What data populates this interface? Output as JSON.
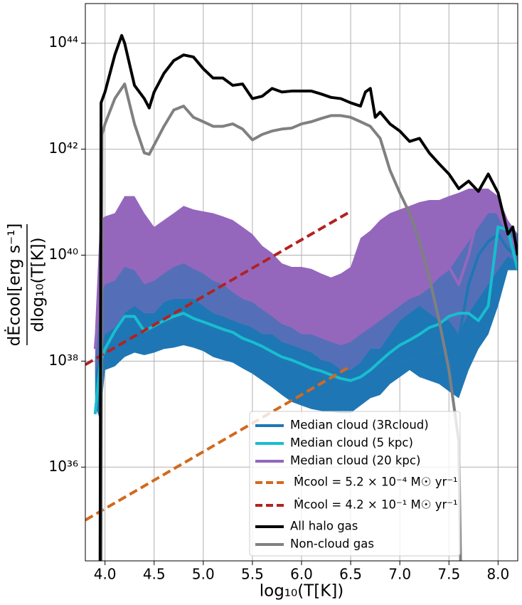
{
  "chart_data": {
    "type": "line",
    "xlabel": "log₁₀(T[K])",
    "ylabel": {
      "numerator": "dĖcool[erg s⁻¹]",
      "denominator": "dlog₁₀(T[K])"
    },
    "xlim": [
      3.8,
      8.2
    ],
    "ylim": [
      1.7e+34,
      5.6e+44
    ],
    "yscale": "log",
    "grid": true,
    "xticks": [
      {
        "value": 4,
        "label": "4.0"
      },
      4.5,
      {
        "value": 5,
        "label": "5.0"
      },
      5.5,
      {
        "value": 6,
        "label": "6.0"
      },
      6.5,
      {
        "value": 7,
        "label": "7.0"
      },
      7.5,
      {
        "value": 8,
        "label": "8.0"
      }
    ],
    "yticks": [
      {
        "value": 1e+36,
        "label": "10³⁶"
      },
      {
        "value": 1e+38,
        "label": "10³⁸"
      },
      {
        "value": 1e+40,
        "label": "10⁴⁰"
      },
      {
        "value": 1e+42,
        "label": "10⁴²"
      },
      {
        "value": 1e+44,
        "label": "10⁴⁴"
      }
    ],
    "x": [
      3.9,
      3.95,
      4.0,
      4.1,
      4.2,
      4.3,
      4.4,
      4.5,
      4.6,
      4.7,
      4.8,
      4.9,
      5.0,
      5.1,
      5.2,
      5.3,
      5.4,
      5.5,
      5.6,
      5.7,
      5.8,
      5.9,
      6.0,
      6.1,
      6.2,
      6.3,
      6.4,
      6.5,
      6.6,
      6.7,
      6.8,
      6.9,
      7.0,
      7.1,
      7.2,
      7.3,
      7.4,
      7.5,
      7.6,
      7.7,
      7.8,
      7.9,
      8.0,
      8.1,
      8.2
    ],
    "series": [
      {
        "name": "Median cloud (3Rcloud)",
        "color": "#1f77b4",
        "values": [
          1e+37,
          8e+37,
          1.5e+38,
          3.3e+38,
          6e+38,
          6e+38,
          3.3e+38,
          4e+38,
          5e+38,
          6e+38,
          7e+38,
          5.5e+38,
          4.7e+38,
          4e+38,
          3.5e+38,
          3e+38,
          2.4e+38,
          2e+38,
          1.6e+38,
          1.3e+38,
          1.05e+38,
          9e+37,
          7.5e+37,
          6.3e+37,
          5.5e+37,
          4.7e+37,
          4e+37,
          3.8e+37,
          6.8e+37,
          7.3e+37,
          8e+37,
          8.8e+37,
          9.4e+37,
          1.05e+38,
          1.2e+38,
          1.35e+38,
          1.45e+38,
          1.7e+38,
          2.7e+38,
          2.8e+39,
          1e+40,
          1.8e+40,
          2.5e+40,
          1.3e+40,
          1e+40
        ],
        "upper": [
          1.2e+38,
          1.5e+39,
          2.8e+39,
          3.3e+39,
          6e+39,
          5.2e+39,
          2.8e+39,
          3.3e+39,
          4.5e+39,
          6e+39,
          7e+39,
          5.5e+39,
          4.5e+39,
          3.3e+39,
          2.8e+39,
          2e+39,
          1.5e+39,
          1.3e+39,
          9.4e+38,
          7e+38,
          5e+38,
          4.3e+38,
          3.2e+38,
          3.2e+38,
          2.7e+38,
          2.3e+38,
          2e+38,
          2.3e+38,
          3.2e+38,
          4.3e+38,
          5.8e+38,
          8e+38,
          1.1e+39,
          1.5e+39,
          1.75e+39,
          2.4e+39,
          3.8e+39,
          5.2e+39,
          9.7e+39,
          1.8e+40,
          3.4e+40,
          6.2e+40,
          6.2e+40,
          3.4e+40,
          2.5e+40
        ],
        "lower": [
          1.45e+37,
          7.8e+36,
          6.8e+37,
          8e+37,
          1.2e+38,
          1.45e+38,
          1.3e+38,
          1.45e+38,
          1.7e+38,
          1.8e+38,
          2e+38,
          1.8e+38,
          1.55e+38,
          1.2e+38,
          1.05e+38,
          9.4e+37,
          7.3e+37,
          5.8e+37,
          4.3e+37,
          3.2e+37,
          2.3e+37,
          1.7e+37,
          1.45e+37,
          1.25e+37,
          1.15e+37,
          1.1e+37,
          1.05e+37,
          1.05e+37,
          1.45e+37,
          2e+37,
          2.3e+37,
          3.7e+37,
          5e+37,
          6.8e+37,
          5e+37,
          4.3e+37,
          3.7e+37,
          2.7e+37,
          2e+37,
          6.8e+37,
          1.7e+38,
          3.2e+38,
          1.1e+39,
          5.2e+39,
          5.2e+39
        ]
      },
      {
        "name": "Median cloud (5 kpc)",
        "color": "#17becf",
        "values": [
          1e+37,
          9e+37,
          1.7e+38,
          3.7e+38,
          7e+38,
          7e+38,
          3.7e+38,
          4.6e+38,
          5.8e+38,
          7e+38,
          8e+38,
          6.4e+38,
          5.5e+38,
          4.7e+38,
          4e+38,
          3.5e+38,
          2.7e+38,
          2.3e+38,
          1.9e+38,
          1.5e+38,
          1.2e+38,
          1.05e+38,
          8.8e+37,
          7.3e+37,
          6.5e+37,
          5.5e+37,
          4.7e+37,
          4.3e+37,
          5e+37,
          6.8e+37,
          1e+38,
          1.45e+38,
          2e+38,
          2.5e+38,
          3.2e+38,
          4.3e+38,
          5e+38,
          7e+38,
          8e+38,
          8e+38,
          5.8e+38,
          1.1e+39,
          3.4e+40,
          3e+40,
          5.2e+39
        ]
      },
      {
        "name": "Median cloud (20 kpc)",
        "color": "#9467bd",
        "values": [
          1.7e+38,
          2.8e+39,
          3.8e+39,
          5.2e+39,
          1.1e+40,
          1.3e+40,
          7e+39,
          5.2e+39,
          8e+39,
          1e+40,
          1.1e+40,
          1e+40,
          8e+39,
          7e+39,
          6e+39,
          5.2e+39,
          4e+39,
          3.3e+39,
          2.2e+39,
          1.9e+39,
          1.3e+39,
          1.1e+39,
          1e+39,
          8.8e+38,
          7e+38,
          5.8e+38,
          5.5e+38,
          6e+38,
          1.4e+39,
          2.2e+39,
          2.8e+39,
          4.5e+39,
          6.6e+39,
          8e+39,
          1e+40,
          5.2e+39,
          4.5e+39,
          6e+39,
          2.8e+39,
          1e+40,
          6.2e+40,
          8.3e+40,
          6.2e+40,
          2.5e+40,
          1.3e+40
        ],
        "upper": [
          4.3e+38,
          4.6e+40,
          5.4e+40,
          6.2e+40,
          1.3e+41,
          1.3e+41,
          6.2e+40,
          3.4e+40,
          4.6e+40,
          6.2e+40,
          8.5e+40,
          7.3e+40,
          6.7e+40,
          6.2e+40,
          5.4e+40,
          4.6e+40,
          3.4e+40,
          2.5e+40,
          1.5e+40,
          1.1e+40,
          7e+39,
          6e+39,
          6e+39,
          5.5e+39,
          4.5e+39,
          3.8e+39,
          4.5e+39,
          6e+39,
          2.1e+40,
          2.9e+40,
          4.6e+40,
          6.2e+40,
          7.3e+40,
          8.5e+40,
          1e+41,
          1.1e+41,
          1.1e+41,
          1.3e+41,
          1.5e+41,
          1.8e+41,
          1.8e+41,
          1.8e+41,
          1.3e+41,
          4.6e+40,
          2.5e+40
        ],
        "lower": [
          5.8e+37,
          1.2e+38,
          3.2e+38,
          4.3e+38,
          8e+38,
          1.1e+39,
          8e+38,
          8e+38,
          1.3e+39,
          1.5e+39,
          1.5e+39,
          1.5e+39,
          1.1e+39,
          8e+38,
          7e+38,
          5.8e+38,
          5e+38,
          4.3e+38,
          3.2e+38,
          3.2e+38,
          2.3e+38,
          2e+38,
          1.7e+38,
          1.45e+38,
          1.05e+38,
          9.4e+37,
          6.8e+37,
          6.8e+37,
          9.4e+37,
          1.7e+38,
          1.7e+38,
          3.2e+38,
          5.8e+38,
          8e+38,
          1.1e+39,
          8e+38,
          5.8e+38,
          5.8e+38,
          3.2e+38,
          8e+38,
          1.5e+39,
          2.8e+39,
          5.2e+39,
          9.5e+39,
          7e+39
        ]
      },
      {
        "name": "Ṁcool = 5.2 × 10⁻⁴ M☉ yr⁻¹",
        "color": "#d2691e",
        "dashed": true,
        "x": [
          3.8,
          6.5
        ],
        "values": [
          1e+35,
          8e+37
        ]
      },
      {
        "name": "Ṁcool = 4.2 × 10⁻¹ M☉ yr⁻¹",
        "color": "#b22222",
        "dashed": true,
        "x": [
          3.8,
          6.5
        ],
        "values": [
          8.6e+37,
          6.7e+40
        ]
      },
      {
        "name": "All halo gas",
        "color": "#000000",
        "x": [
          3.95,
          3.96,
          4.0,
          4.1,
          4.17,
          4.2,
          4.3,
          4.4,
          4.45,
          4.5,
          4.6,
          4.7,
          4.8,
          4.9,
          5.0,
          5.1,
          5.2,
          5.3,
          5.4,
          5.5,
          5.6,
          5.7,
          5.8,
          5.9,
          6.0,
          6.1,
          6.2,
          6.3,
          6.4,
          6.5,
          6.6,
          6.65,
          6.7,
          6.75,
          6.8,
          6.9,
          7.0,
          7.1,
          7.2,
          7.3,
          7.4,
          7.5,
          7.6,
          7.7,
          7.8,
          7.9,
          8.0,
          8.1,
          8.15,
          8.2
        ],
        "values": [
          1e+34,
          7.5e+42,
          1.2e+43,
          6e+43,
          1.4e+44,
          1e+44,
          1.6e+43,
          9e+42,
          6e+42,
          1.2e+43,
          2.7e+43,
          4.7e+43,
          6e+43,
          5.5e+43,
          3.3e+43,
          2.2e+43,
          2.2e+43,
          1.6e+43,
          1.7e+43,
          9e+42,
          1e+43,
          1.4e+43,
          1.2e+43,
          1.25e+43,
          1.25e+43,
          1.25e+43,
          1.1e+43,
          9.5e+42,
          9e+42,
          7.5e+42,
          6.5e+42,
          1.2e+43,
          1.4e+43,
          4e+42,
          5e+42,
          3e+42,
          2.2e+42,
          1.4e+42,
          1.6e+42,
          8.5e+41,
          5.3e+41,
          3.4e+41,
          1.8e+41,
          2.5e+41,
          1.6e+41,
          3.4e+41,
          1.5e+41,
          2.5e+40,
          3.4e+40,
          1e+40
        ]
      },
      {
        "name": "Non-cloud gas",
        "color": "#808080",
        "x": [
          3.96,
          3.97,
          4.0,
          4.1,
          4.2,
          4.3,
          4.4,
          4.45,
          4.5,
          4.6,
          4.7,
          4.8,
          4.9,
          5.0,
          5.1,
          5.2,
          5.3,
          5.4,
          5.5,
          5.6,
          5.7,
          5.8,
          5.9,
          6.0,
          6.1,
          6.2,
          6.3,
          6.4,
          6.5,
          6.6,
          6.7,
          6.8,
          6.9,
          7.0,
          7.1,
          7.2,
          7.3,
          7.4,
          7.5,
          7.6,
          7.62
        ],
        "values": [
          1e+34,
          1.9e+42,
          3e+42,
          9e+42,
          1.7e+43,
          3e+42,
          8.5e+41,
          8e+41,
          1.2e+42,
          2.7e+42,
          5.5e+42,
          6.5e+42,
          4e+42,
          3.3e+42,
          2.7e+42,
          2.7e+42,
          3e+42,
          2.4e+42,
          1.5e+42,
          1.9e+42,
          2.2e+42,
          2.4e+42,
          2.5e+42,
          3e+42,
          3.3e+42,
          3.8e+42,
          4.3e+42,
          4.3e+42,
          4e+42,
          3.3e+42,
          2.7e+42,
          1.6e+42,
          4e+41,
          1.5e+41,
          6.2e+40,
          1.8e+40,
          3.8e+39,
          5.8e+38,
          6.8e+37,
          3.1e+36,
          1e+34
        ]
      }
    ]
  }
}
